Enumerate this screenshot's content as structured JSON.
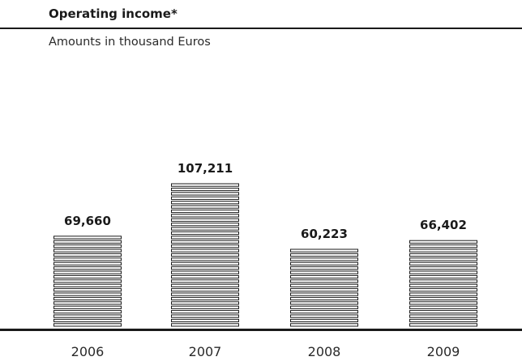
{
  "chart_data": {
    "type": "bar",
    "title": "Operating income*",
    "subtitle": "Amounts in thousand Euros",
    "categories": [
      "2006",
      "2007",
      "2008",
      "2009"
    ],
    "values": [
      69660,
      107211,
      60223,
      66402
    ],
    "value_labels": [
      "69,660",
      "107,211",
      "60,223",
      "66,402"
    ],
    "xlabel": "",
    "ylabel": "",
    "grid": false,
    "bar_style": "horizontal-striped",
    "colors": {
      "ink": "#1a1a1a",
      "bar_fill": "#ffffff"
    }
  }
}
